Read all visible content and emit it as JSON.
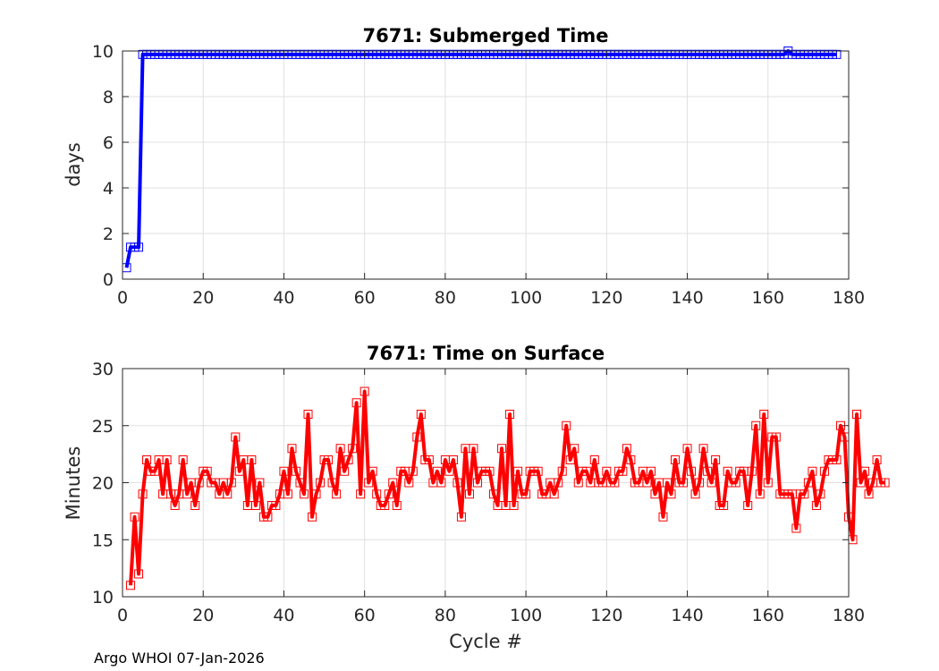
{
  "chart_data": [
    {
      "type": "line",
      "title": "7671: Submerged Time",
      "xlabel": "",
      "ylabel": "days",
      "xlim": [
        0,
        180
      ],
      "ylim": [
        0,
        10
      ],
      "xticks": [
        0,
        20,
        40,
        60,
        80,
        100,
        120,
        140,
        160,
        180
      ],
      "yticks": [
        0,
        2,
        4,
        6,
        8,
        10
      ],
      "grid": true,
      "marker": "square",
      "color": "#0000ff",
      "x": [
        1,
        2,
        3,
        4,
        5
      ],
      "y": [
        0.5,
        1.4,
        1.4,
        1.4,
        9.85
      ],
      "x_range_after": [
        5,
        177
      ],
      "y_after": 9.85,
      "y_at_165": 10.0
    },
    {
      "type": "line",
      "title": "7671: Time on Surface",
      "xlabel": "Cycle #",
      "ylabel": "Minutes",
      "xlim": [
        0,
        180
      ],
      "ylim": [
        10,
        30
      ],
      "xticks": [
        0,
        20,
        40,
        60,
        80,
        100,
        120,
        140,
        160,
        180
      ],
      "yticks": [
        10,
        15,
        20,
        25,
        30
      ],
      "grid": true,
      "marker": "square",
      "color": "#ff0000",
      "values": [
        11,
        17,
        12,
        19,
        22,
        21,
        21,
        22,
        19,
        22,
        19,
        18,
        19,
        22,
        19,
        20,
        18,
        20,
        21,
        21,
        20,
        20,
        19,
        20,
        19,
        20,
        24,
        21,
        22,
        18,
        22,
        18,
        20,
        17,
        17,
        18,
        18,
        19,
        21,
        19,
        23,
        21,
        20,
        19,
        26,
        17,
        19,
        20,
        22,
        22,
        20,
        19,
        23,
        21,
        22,
        23,
        27,
        19,
        28,
        20,
        21,
        19,
        18,
        18,
        19,
        20,
        18,
        21,
        21,
        20,
        21,
        24,
        26,
        22,
        22,
        20,
        21,
        20,
        22,
        21,
        22,
        20,
        17,
        23,
        19,
        23,
        20,
        21,
        21,
        21,
        19,
        18,
        23,
        18,
        26,
        18,
        21,
        19,
        19,
        21,
        21,
        21,
        19,
        19,
        20,
        19,
        20,
        21,
        25,
        22,
        23,
        20,
        21,
        21,
        20,
        22,
        20,
        20,
        21,
        20,
        20,
        21,
        21,
        23,
        22,
        20,
        20,
        21,
        20,
        21,
        19,
        20,
        17,
        20,
        19,
        22,
        20,
        20,
        23,
        21,
        19,
        20,
        23,
        21,
        20,
        22,
        18,
        18,
        21,
        20,
        20,
        21,
        21,
        18,
        21,
        25,
        19,
        26,
        20,
        24,
        24,
        19,
        19,
        19,
        19,
        16,
        19,
        19,
        20,
        21,
        18,
        19,
        21,
        22,
        22,
        22,
        25,
        24,
        17,
        15,
        26,
        20,
        21,
        19,
        20,
        22,
        20,
        20
      ]
    }
  ],
  "footer_text": "Argo WHOI 07-Jan-2026"
}
